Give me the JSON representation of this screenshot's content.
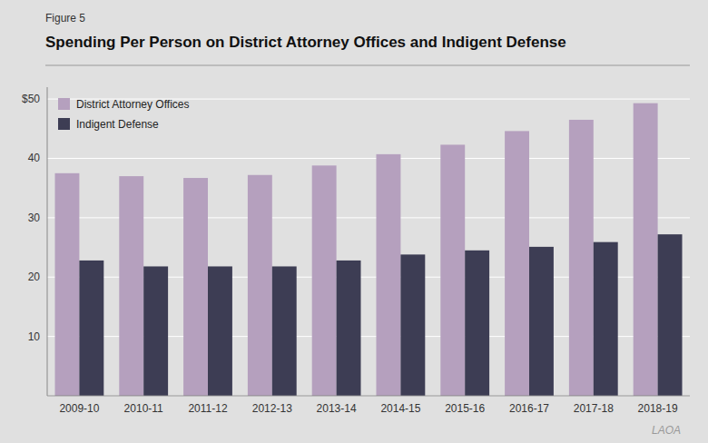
{
  "chart_data": {
    "type": "bar",
    "title": "Spending Per Person on District Attorney Offices and Indigent Defense",
    "annotations": [
      "Figure 5",
      "LAOA"
    ],
    "categories": [
      "2009-10",
      "2010-11",
      "2011-12",
      "2012-13",
      "2013-14",
      "2014-15",
      "2015-16",
      "2016-17",
      "2017-18",
      "2018-19"
    ],
    "series": [
      {
        "name": "District Attorney Offices",
        "color": "#b5a0be",
        "values": [
          37.5,
          37.0,
          36.7,
          37.2,
          38.8,
          40.7,
          42.3,
          44.6,
          46.5,
          49.3
        ]
      },
      {
        "name": "Indigent Defense",
        "color": "#3d3d54",
        "values": [
          22.8,
          21.8,
          21.8,
          21.8,
          22.8,
          23.8,
          24.5,
          25.1,
          25.9,
          27.2
        ]
      }
    ],
    "ylim": [
      0,
      52
    ],
    "yticks": [
      {
        "value": 0,
        "label": null
      },
      10,
      20,
      30,
      40,
      {
        "value": 50,
        "label": "$50"
      }
    ],
    "grid": true,
    "legend": "upper left"
  }
}
